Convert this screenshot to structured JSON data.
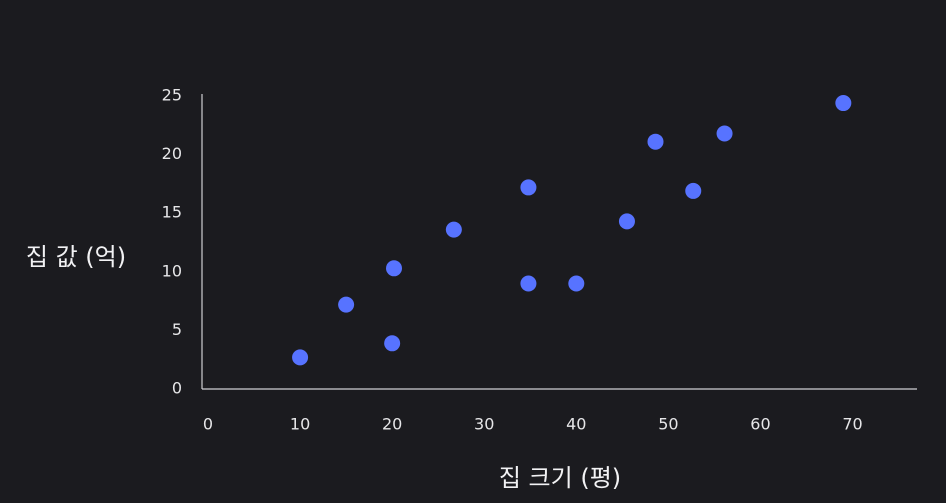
{
  "chart_data": {
    "type": "scatter",
    "title": "",
    "xlabel": "집 크기 (평)",
    "ylabel": "집 값 (억)",
    "xlim": [
      0,
      77
    ],
    "ylim": [
      0,
      25
    ],
    "x_ticks": [
      0,
      10,
      20,
      30,
      40,
      50,
      60,
      70
    ],
    "y_ticks": [
      0,
      5,
      10,
      15,
      20,
      25
    ],
    "grid": false,
    "legend": "none",
    "point_color": "#5773ff",
    "background_color": "#1b1b1f",
    "series": [
      {
        "points": [
          {
            "x": 10.0,
            "y": 2.7
          },
          {
            "x": 15.0,
            "y": 7.2
          },
          {
            "x": 20.0,
            "y": 3.9
          },
          {
            "x": 20.2,
            "y": 10.3
          },
          {
            "x": 26.7,
            "y": 13.6
          },
          {
            "x": 34.8,
            "y": 9.0
          },
          {
            "x": 34.8,
            "y": 17.2
          },
          {
            "x": 40.0,
            "y": 9.0
          },
          {
            "x": 45.5,
            "y": 14.3
          },
          {
            "x": 48.6,
            "y": 21.1
          },
          {
            "x": 52.7,
            "y": 16.9
          },
          {
            "x": 56.1,
            "y": 21.8
          },
          {
            "x": 69.0,
            "y": 24.4
          }
        ]
      }
    ]
  }
}
